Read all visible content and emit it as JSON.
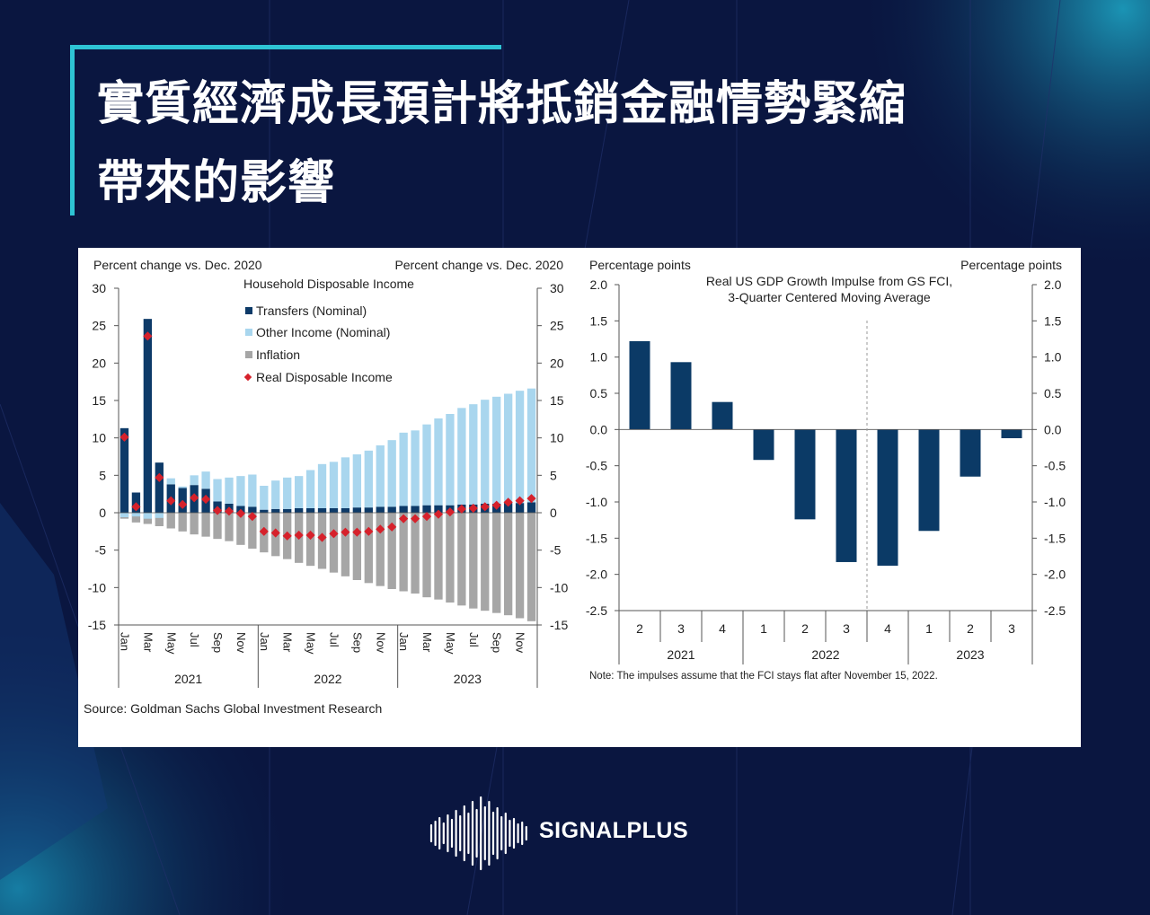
{
  "title": {
    "line1": "實質經濟成長預計將抵銷金融情勢緊縮",
    "line2": "帶來的影響"
  },
  "colors": {
    "background": "#0a1640",
    "accent": "#2ec4d4",
    "transfers": "#0d3a68",
    "other_income": "#a9d6ee",
    "inflation": "#a6a6a6",
    "real_income": "#d6212b",
    "impulse_bar": "#0b3a66"
  },
  "brand": {
    "name": "SIGNALPLUS",
    "logo_icon": "soundwave-logo-icon"
  },
  "source": "Source: Goldman Sachs Global Investment Research",
  "chart_data": [
    {
      "type": "bar",
      "title": "Household Disposable Income",
      "ylabel_left": "Percent change vs. Dec. 2020",
      "ylabel_right": "Percent change vs. Dec. 2020",
      "ylim": [
        -15,
        30
      ],
      "yticks": [
        "30",
        "25",
        "20",
        "15",
        "10",
        "5",
        "0",
        "-5",
        "-10",
        "-15"
      ],
      "legend": [
        "Transfers (Nominal)",
        "Other Income (Nominal)",
        "Inflation",
        "Real Disposable Income"
      ],
      "legend_position": "top-left",
      "month_labels": [
        "Jan",
        "Mar",
        "May",
        "Jul",
        "Sep",
        "Nov",
        "Jan",
        "Mar",
        "May",
        "Jul",
        "Sep",
        "Nov",
        "Jan",
        "Mar",
        "May",
        "Jul",
        "Sep",
        "Nov"
      ],
      "year_labels": [
        "2021",
        "2022",
        "2023"
      ],
      "categories": [
        "Jan 2021",
        "Feb 2021",
        "Mar 2021",
        "Apr 2021",
        "May 2021",
        "Jun 2021",
        "Jul 2021",
        "Aug 2021",
        "Sep 2021",
        "Oct 2021",
        "Nov 2021",
        "Dec 2021",
        "Jan 2022",
        "Feb 2022",
        "Mar 2022",
        "Apr 2022",
        "May 2022",
        "Jun 2022",
        "Jul 2022",
        "Aug 2022",
        "Sep 2022",
        "Oct 2022",
        "Nov 2022",
        "Dec 2022",
        "Jan 2023",
        "Feb 2023",
        "Mar 2023",
        "Apr 2023",
        "May 2023",
        "Jun 2023",
        "Jul 2023",
        "Aug 2023",
        "Sep 2023",
        "Oct 2023",
        "Nov 2023",
        "Dec 2023"
      ],
      "series": [
        {
          "name": "Transfers (Nominal)",
          "values": [
            11.3,
            2.7,
            25.9,
            6.7,
            3.8,
            3.3,
            3.7,
            3.2,
            1.5,
            1.2,
            0.9,
            0.8,
            0.4,
            0.5,
            0.5,
            0.6,
            0.6,
            0.6,
            0.6,
            0.6,
            0.7,
            0.7,
            0.8,
            0.8,
            0.9,
            0.9,
            1.0,
            1.0,
            1.0,
            1.1,
            1.1,
            1.2,
            1.2,
            1.3,
            1.3,
            1.4
          ]
        },
        {
          "name": "Other Income (Nominal)",
          "values": [
            -0.6,
            -0.5,
            -0.8,
            -0.7,
            0.8,
            0.2,
            1.3,
            2.3,
            3.0,
            3.5,
            4.0,
            4.3,
            3.2,
            3.8,
            4.2,
            4.3,
            5.1,
            5.9,
            6.2,
            6.8,
            7.1,
            7.6,
            8.2,
            8.9,
            9.8,
            10.1,
            10.8,
            11.6,
            12.2,
            12.9,
            13.4,
            13.9,
            14.3,
            14.6,
            15.0,
            15.2
          ]
        },
        {
          "name": "Inflation",
          "values": [
            -0.8,
            -1.3,
            -1.5,
            -1.8,
            -2.1,
            -2.5,
            -2.9,
            -3.2,
            -3.5,
            -3.8,
            -4.3,
            -4.8,
            -5.3,
            -5.8,
            -6.2,
            -6.7,
            -7.1,
            -7.5,
            -8.0,
            -8.5,
            -9.0,
            -9.4,
            -9.8,
            -10.2,
            -10.5,
            -10.8,
            -11.3,
            -11.6,
            -12.0,
            -12.4,
            -12.8,
            -13.1,
            -13.4,
            -13.7,
            -14.1,
            -14.5
          ]
        },
        {
          "name": "Real Disposable Income",
          "values": [
            10.1,
            0.8,
            23.6,
            4.7,
            1.6,
            1.1,
            2.0,
            1.8,
            0.3,
            0.2,
            -0.1,
            -0.5,
            -2.5,
            -2.7,
            -3.1,
            -3.0,
            -3.0,
            -3.3,
            -2.8,
            -2.6,
            -2.6,
            -2.5,
            -2.2,
            -1.9,
            -0.8,
            -0.8,
            -0.5,
            -0.2,
            0.1,
            0.5,
            0.6,
            0.8,
            1.0,
            1.4,
            1.6,
            1.9
          ]
        }
      ]
    },
    {
      "type": "bar",
      "title": "Real US GDP Growth Impulse from GS FCI,",
      "subtitle": "3-Quarter Centered Moving Average",
      "ylabel_left": "Percentage points",
      "ylabel_right": "Percentage points",
      "ylim": [
        -2.5,
        2.0
      ],
      "yticks": [
        "2.0",
        "1.5",
        "1.0",
        "0.5",
        "0.0",
        "-0.5",
        "-1.0",
        "-1.5",
        "-2.0",
        "-2.5"
      ],
      "categories": [
        "2",
        "3",
        "4",
        "1",
        "2",
        "3",
        "4",
        "1",
        "2",
        "3"
      ],
      "year_labels": [
        "2021",
        "2022",
        "2023"
      ],
      "values": [
        1.22,
        0.93,
        0.38,
        -0.42,
        -1.24,
        -1.83,
        -1.88,
        -1.4,
        -0.65,
        -0.12
      ],
      "note": "Note: The impulses assume that the FCI stays flat after November 15, 2022."
    }
  ]
}
